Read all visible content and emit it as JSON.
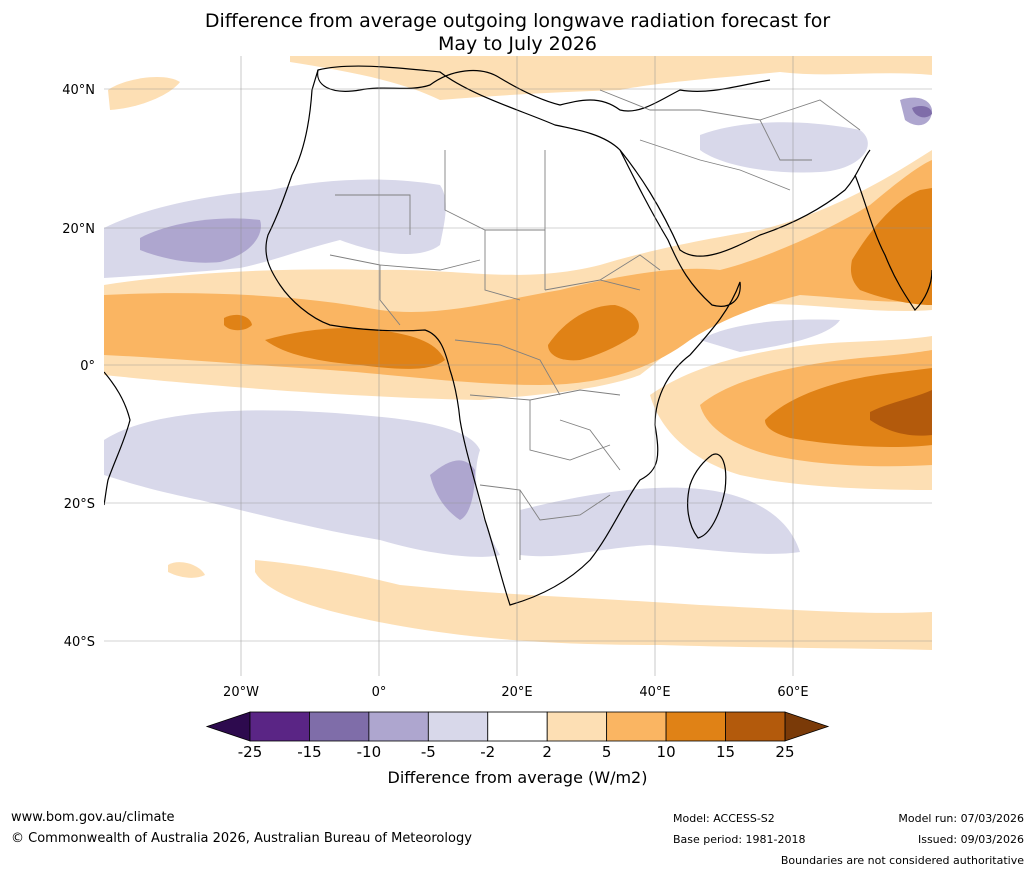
{
  "title_line1": "Difference from average outgoing longwave radiation forecast for",
  "title_line2": "May to July 2026",
  "lat_labels": [
    "40°N",
    "20°N",
    "0°",
    "20°S",
    "40°S"
  ],
  "lon_labels": [
    "20°W",
    "0°",
    "20°E",
    "40°E",
    "60°E"
  ],
  "colorbar": {
    "ticks": [
      "-25",
      "-15",
      "-10",
      "-5",
      "-2",
      "2",
      "5",
      "10",
      "15",
      "25"
    ],
    "colors": [
      "#5a2585",
      "#7f6da9",
      "#aea6cf",
      "#d8d8ea",
      "#ffffff",
      "#fddfb4",
      "#fab562",
      "#e08216",
      "#b35a0c"
    ],
    "under_color": "#2d0a4e",
    "over_color": "#7a3a08",
    "label": "Difference from average (W/m2)"
  },
  "footer": {
    "website": "www.bom.gov.au/climate",
    "copyright": "© Commonwealth of Australia 2026, Australian Bureau of Meteorology",
    "model": "Model: ACCESS-S2",
    "base_period": "Base period: 1981-2018",
    "model_run": "Model run: 07/03/2026",
    "issued": "Issued: 09/03/2026",
    "boundaries": "Boundaries are not considered authoritative"
  }
}
